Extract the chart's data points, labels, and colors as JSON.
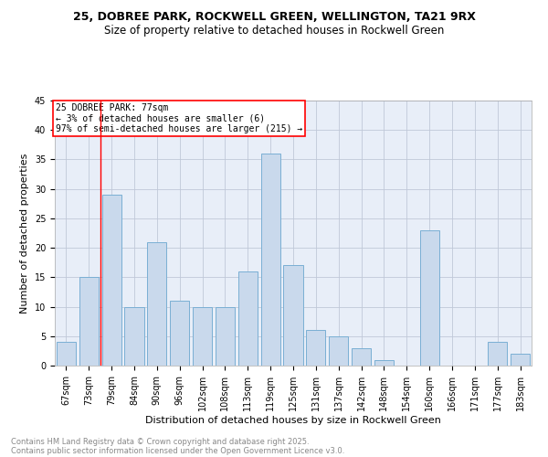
{
  "title1": "25, DOBREE PARK, ROCKWELL GREEN, WELLINGTON, TA21 9RX",
  "title2": "Size of property relative to detached houses in Rockwell Green",
  "xlabel": "Distribution of detached houses by size in Rockwell Green",
  "ylabel": "Number of detached properties",
  "categories": [
    "67sqm",
    "73sqm",
    "79sqm",
    "84sqm",
    "90sqm",
    "96sqm",
    "102sqm",
    "108sqm",
    "113sqm",
    "119sqm",
    "125sqm",
    "131sqm",
    "137sqm",
    "142sqm",
    "148sqm",
    "154sqm",
    "160sqm",
    "166sqm",
    "171sqm",
    "177sqm",
    "183sqm"
  ],
  "values": [
    4,
    15,
    29,
    10,
    21,
    11,
    10,
    10,
    16,
    36,
    17,
    6,
    5,
    3,
    1,
    0,
    23,
    0,
    0,
    4,
    2
  ],
  "bar_color": "#c9d9ec",
  "bar_edge_color": "#7aafd4",
  "annotation_box_text": "25 DOBREE PARK: 77sqm\n← 3% of detached houses are smaller (6)\n97% of semi-detached houses are larger (215) →",
  "annotation_box_color": "white",
  "annotation_box_edge_color": "red",
  "vline_color": "red",
  "vline_x": 1.5,
  "ylim": [
    0,
    45
  ],
  "yticks": [
    0,
    5,
    10,
    15,
    20,
    25,
    30,
    35,
    40,
    45
  ],
  "grid_color": "#c0c8d8",
  "background_color": "#e8eef8",
  "footer1": "Contains HM Land Registry data © Crown copyright and database right 2025.",
  "footer2": "Contains public sector information licensed under the Open Government Licence v3.0.",
  "title1_fontsize": 9,
  "title2_fontsize": 8.5,
  "axis_label_fontsize": 8,
  "tick_fontsize": 7,
  "footer_fontsize": 6,
  "annot_fontsize": 7
}
